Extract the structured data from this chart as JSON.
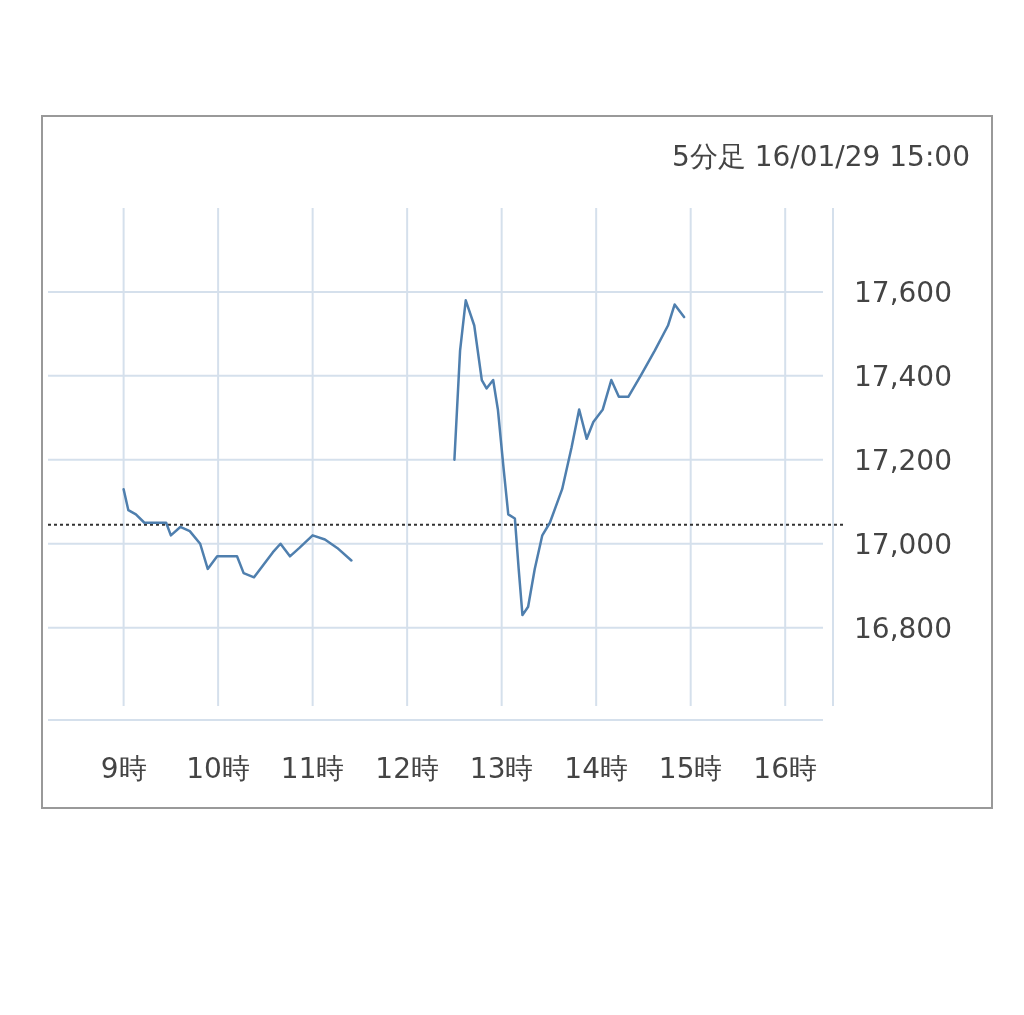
{
  "chart_data": {
    "type": "line",
    "subtitle": "5分足 16/01/29 15:00",
    "x": [
      9.0,
      9.05,
      9.13,
      9.22,
      9.34,
      9.45,
      9.5,
      9.6,
      9.7,
      9.81,
      9.89,
      9.99,
      10.12,
      10.2,
      10.27,
      10.38,
      10.48,
      10.58,
      10.66,
      10.76,
      10.86,
      11.0,
      11.13,
      11.26,
      11.41,
      12.0,
      12.5,
      12.56,
      12.62,
      12.71,
      12.79,
      12.84,
      12.91,
      12.96,
      13.02,
      13.07,
      13.14,
      13.18,
      13.22,
      13.28,
      13.35,
      13.43,
      13.51,
      13.64,
      13.74,
      13.82,
      13.9,
      13.97,
      14.07,
      14.16,
      14.24,
      14.34,
      14.47,
      14.62,
      14.76,
      14.83,
      14.93
    ],
    "series": [
      {
        "color": "#4f7fae",
        "values": [
          17130,
          17080,
          17070,
          17050,
          17050,
          17050,
          17020,
          17040,
          17030,
          17000,
          16940,
          16970,
          16970,
          16970,
          16930,
          16920,
          16950,
          16980,
          17000,
          16970,
          16990,
          17020,
          17010,
          16990,
          16960,
          null,
          17200,
          17460,
          17580,
          17520,
          17390,
          17370,
          17390,
          17320,
          17180,
          17070,
          17060,
          16940,
          16830,
          16850,
          16940,
          17020,
          17050,
          17130,
          17230,
          17320,
          17250,
          17290,
          17320,
          17390,
          17350,
          17350,
          17400,
          17460,
          17520,
          17570,
          17540
        ]
      }
    ],
    "xlim": [
      8.2,
      16.4
    ],
    "ylim": [
      16580,
      17800
    ],
    "xticks": [
      {
        "value": 9,
        "label": "9時"
      },
      {
        "value": 10,
        "label": "10時"
      },
      {
        "value": 11,
        "label": "11時"
      },
      {
        "value": 12,
        "label": "12時"
      },
      {
        "value": 13,
        "label": "13時"
      },
      {
        "value": 14,
        "label": "14時"
      },
      {
        "value": 15,
        "label": "15時"
      },
      {
        "value": 16,
        "label": "16時"
      }
    ],
    "yticks": [
      {
        "value": 16800,
        "label": "16,800"
      },
      {
        "value": 17000,
        "label": "17,000"
      },
      {
        "value": 17200,
        "label": "17,200"
      },
      {
        "value": 17400,
        "label": "17,400"
      },
      {
        "value": 17600,
        "label": "17,600"
      }
    ],
    "grid": true,
    "line_style": "solid",
    "ref_lines": [
      {
        "axis": "y",
        "value": 17045,
        "color": "#333333",
        "line_style": "dotted"
      }
    ]
  }
}
